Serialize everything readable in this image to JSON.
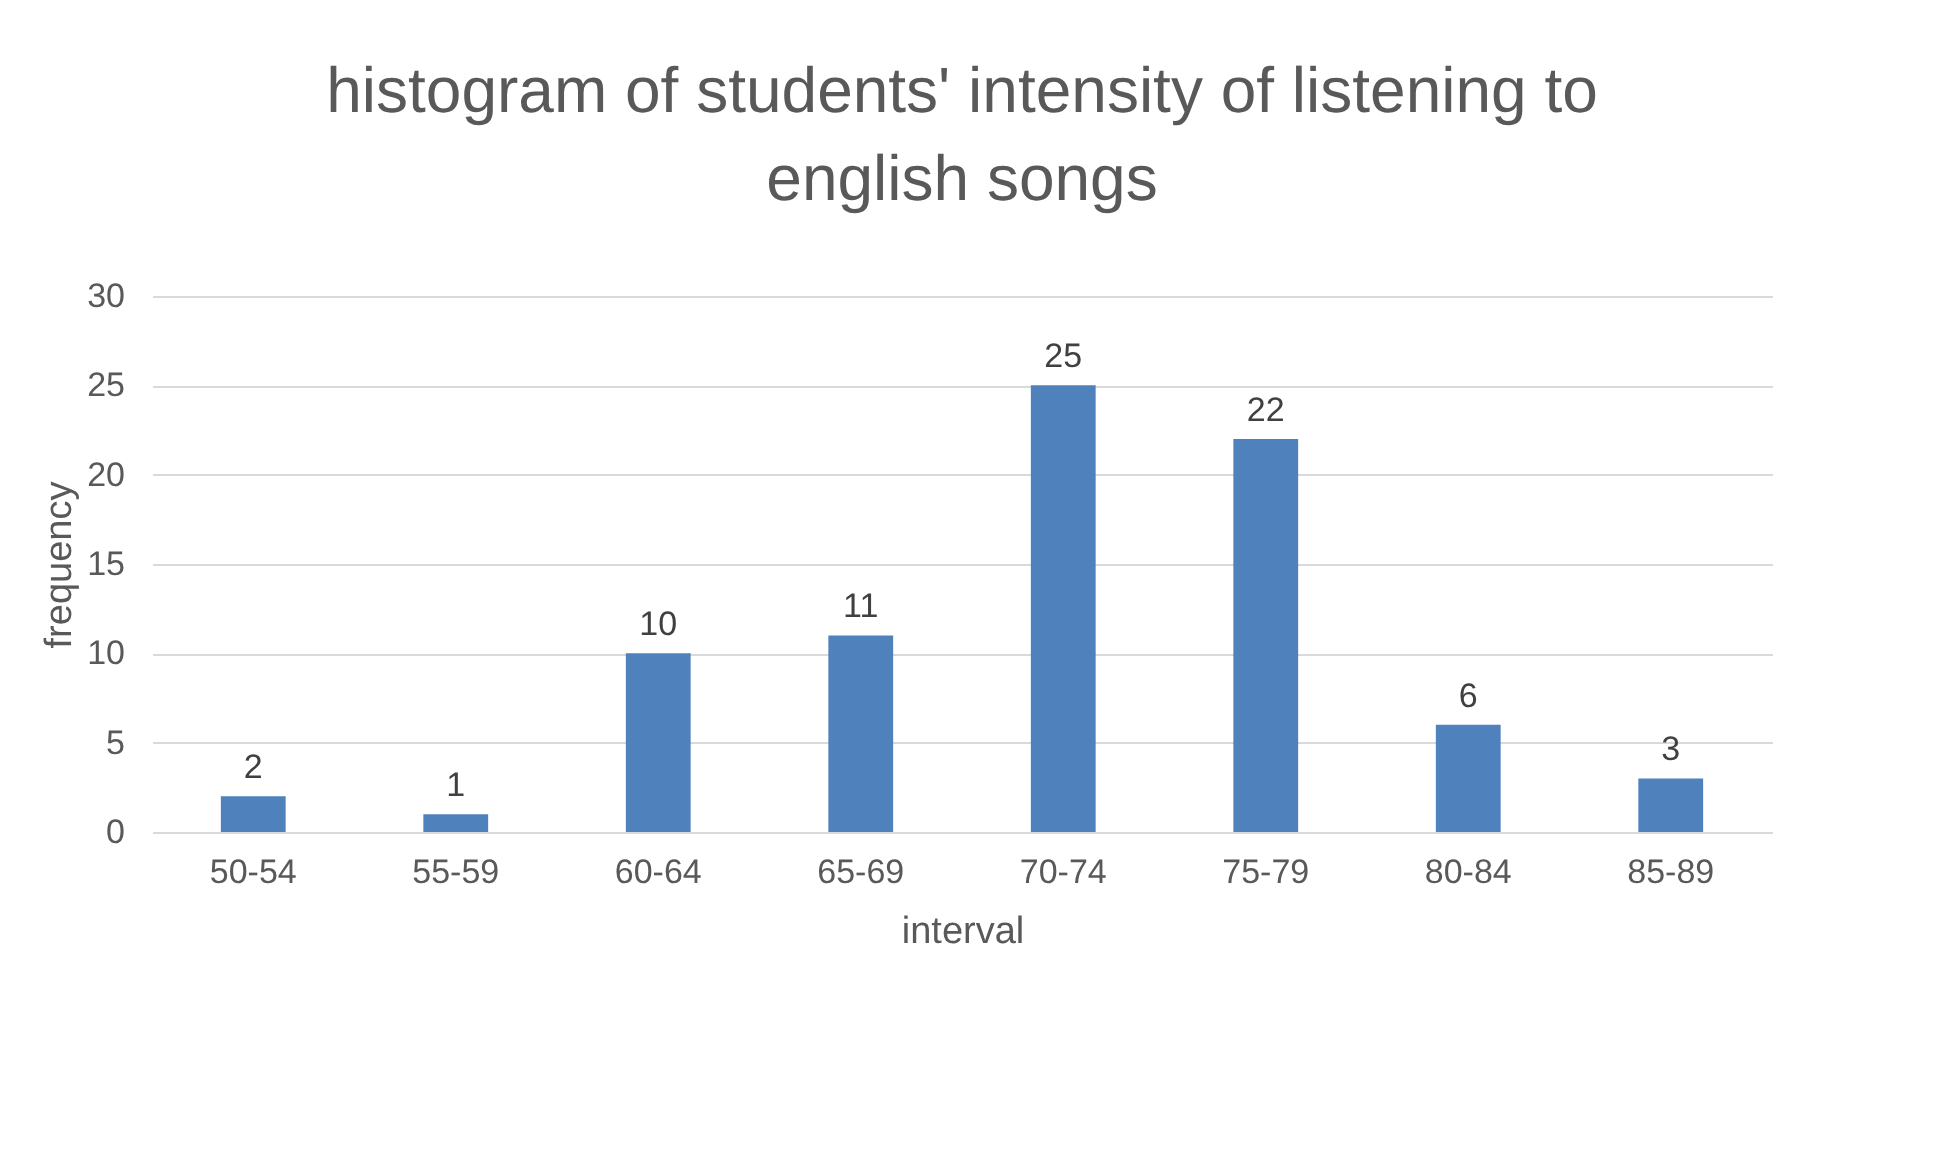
{
  "chart_data": {
    "type": "bar",
    "title": "histogram of students' intensity of listening to english songs",
    "xlabel": "interval",
    "ylabel": "frequency",
    "categories": [
      "50-54",
      "55-59",
      "60-64",
      "65-69",
      "70-74",
      "75-79",
      "80-84",
      "85-89"
    ],
    "values": [
      2,
      1,
      10,
      11,
      25,
      22,
      6,
      3
    ],
    "color": "#4f81bd",
    "ylim": [
      0,
      30
    ],
    "yticks": [
      0,
      5,
      10,
      15,
      20,
      25,
      30
    ],
    "grid": "y",
    "data_labels": true
  }
}
